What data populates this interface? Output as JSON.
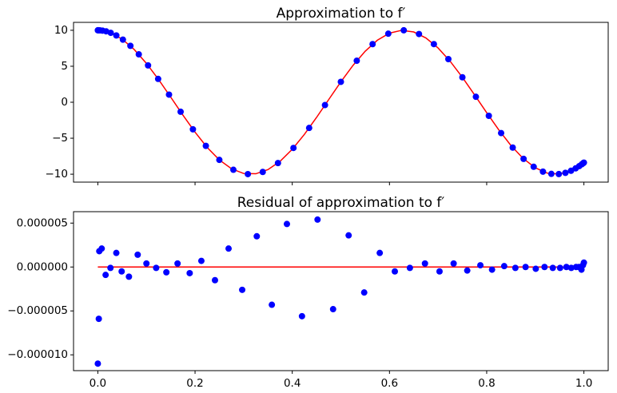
{
  "chart_data": [
    {
      "type": "line",
      "title": "Approximation to f′",
      "xlim": [
        -0.05,
        1.05
      ],
      "ylim": [
        -11.1,
        11.1
      ],
      "xticks": [
        0,
        0.2,
        0.4,
        0.6,
        0.8,
        1
      ],
      "yticks": [
        {
          "value": -10,
          "label": "−10"
        },
        {
          "value": -5,
          "label": "−5"
        },
        0,
        5,
        10
      ],
      "show_xtick_labels": false,
      "series": [
        {
          "mode": "line",
          "color": "#ff0000",
          "x": [
            0,
            0.025,
            0.05,
            0.075,
            0.1,
            0.125,
            0.15,
            0.175,
            0.2,
            0.225,
            0.25,
            0.275,
            0.3,
            0.325,
            0.35,
            0.375,
            0.4,
            0.425,
            0.45,
            0.475,
            0.5,
            0.525,
            0.55,
            0.575,
            0.6,
            0.625,
            0.65,
            0.675,
            0.7,
            0.725,
            0.75,
            0.775,
            0.8,
            0.825,
            0.85,
            0.875,
            0.9,
            0.925,
            0.95,
            0.975,
            1
          ],
          "values": [
            10,
            9.689,
            8.776,
            7.317,
            5.403,
            3.153,
            0.707,
            -1.782,
            -4.161,
            -6.282,
            -8.011,
            -9.243,
            -9.9,
            -9.941,
            -9.365,
            -8.206,
            -6.536,
            -4.465,
            -2.108,
            0.376,
            2.837,
            5.121,
            7.087,
            8.612,
            9.602,
            9.995,
            9.766,
            8.93,
            7.539,
            5.683,
            3.466,
            1.031,
            -1.455,
            -3.846,
            -6.02,
            -7.807,
            -9.111,
            -9.858,
            -9.972,
            -9.484,
            -8.391
          ]
        },
        {
          "mode": "markers",
          "color": "#0000ff",
          "x": [
            0,
            0.00107,
            0.00428,
            0.00961,
            0.01704,
            0.02653,
            0.03806,
            0.05157,
            0.06699,
            0.08427,
            0.10332,
            0.12408,
            0.14645,
            0.17033,
            0.19562,
            0.22221,
            0.25,
            0.27886,
            0.30866,
            0.33928,
            0.37059,
            0.40246,
            0.43474,
            0.4673,
            0.5,
            0.5327,
            0.56526,
            0.59754,
            0.62941,
            0.66072,
            0.69134,
            0.72114,
            0.75,
            0.77779,
            0.80438,
            0.82967,
            0.85355,
            0.87592,
            0.89668,
            0.91573,
            0.93301,
            0.94843,
            0.96194,
            0.97347,
            0.98296,
            0.99039,
            0.99572,
            0.99893,
            1
          ],
          "values": [
            10,
            9.999,
            9.991,
            9.954,
            9.855,
            9.65,
            9.284,
            8.699,
            7.839,
            6.655,
            5.121,
            3.24,
            1.061,
            -1.321,
            -3.759,
            -6.062,
            -8.011,
            -9.384,
            -9.985,
            -9.686,
            -8.45,
            -6.348,
            -3.57,
            -0.394,
            2.837,
            5.766,
            8.077,
            9.53,
            9.999,
            9.48,
            8.079,
            5.993,
            3.467,
            0.76,
            -1.887,
            -4.284,
            -6.3,
            -7.866,
            -8.97,
            -9.644,
            -9.955,
            -9.982,
            -9.811,
            -9.524,
            -9.192,
            -8.874,
            -8.616,
            -8.449,
            -8.391
          ]
        }
      ]
    },
    {
      "type": "line",
      "title": "Residual of approximation to f′",
      "xlim": [
        -0.05,
        1.05
      ],
      "ylim": [
        -1.18e-05,
        6.3e-06
      ],
      "xticks": [
        {
          "value": 0,
          "label": "0.0"
        },
        0.2,
        0.4,
        0.6,
        0.8,
        {
          "value": 1,
          "label": "1.0"
        }
      ],
      "yticks": [
        {
          "value": -1e-05,
          "label": "−0.000010"
        },
        {
          "value": -5e-06,
          "label": "−0.000005"
        },
        {
          "value": 0,
          "label": "0.000000"
        },
        5e-06
      ],
      "show_xtick_labels": true,
      "series": [
        {
          "mode": "line",
          "color": "#ff0000",
          "x": [
            0,
            1
          ],
          "values": [
            0,
            0
          ]
        },
        {
          "mode": "markers",
          "color": "#0000ff",
          "x": [
            0,
            0.002,
            0.003,
            0.008,
            0.016,
            0.026,
            0.038,
            0.049,
            0.064,
            0.082,
            0.1,
            0.12,
            0.141,
            0.164,
            0.189,
            0.213,
            0.241,
            0.269,
            0.297,
            0.327,
            0.358,
            0.389,
            0.42,
            0.452,
            0.484,
            0.516,
            0.548,
            0.58,
            0.611,
            0.642,
            0.673,
            0.703,
            0.732,
            0.76,
            0.787,
            0.811,
            0.836,
            0.859,
            0.88,
            0.901,
            0.919,
            0.936,
            0.951,
            0.964,
            0.974,
            0.984,
            0.99,
            0.995,
            0.998,
            1
          ],
          "values": [
            -1.1e-05,
            -5.9e-06,
            1.8e-06,
            2.1e-06,
            -9e-07,
            -1e-07,
            1.6e-06,
            -5e-07,
            -1.1e-06,
            1.4e-06,
            4e-07,
            -1e-07,
            -6e-07,
            4e-07,
            -7e-07,
            7e-07,
            -1.5e-06,
            2.1e-06,
            -2.6e-06,
            3.5e-06,
            -4.3e-06,
            4.9e-06,
            -5.6e-06,
            5.4e-06,
            -4.8e-06,
            3.6e-06,
            -2.9e-06,
            1.6e-06,
            -5e-07,
            -1e-07,
            4e-07,
            -5e-07,
            4e-07,
            -4e-07,
            2e-07,
            -3e-07,
            1e-07,
            -1e-07,
            0,
            -2e-07,
            0,
            -1e-07,
            -1e-07,
            0,
            -1e-07,
            0,
            0,
            -3e-07,
            2e-07,
            5e-07
          ]
        }
      ]
    }
  ]
}
